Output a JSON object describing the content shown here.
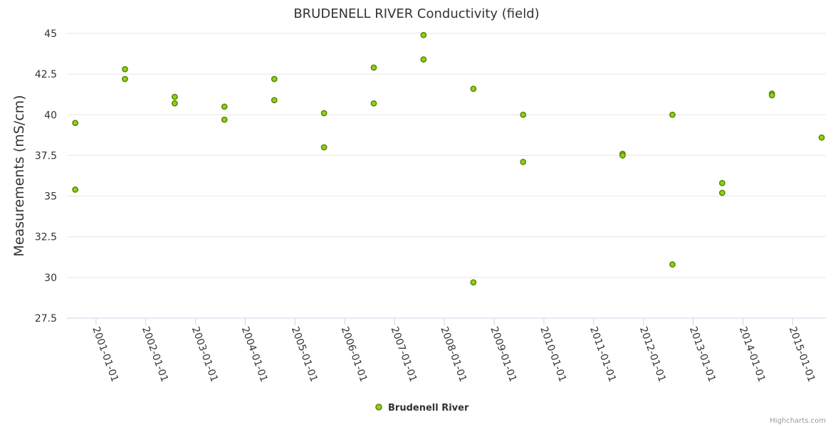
{
  "chart_data": {
    "type": "scatter",
    "title": "BRUDENELL RIVER Conductivity (field)",
    "xlabel": "",
    "ylabel": "Measurements (mS/cm)",
    "ylim": [
      27.5,
      45
    ],
    "xlim": [
      "2000-06-01",
      "2015-09-01"
    ],
    "yticks": [
      "27.5",
      "30",
      "32.5",
      "35",
      "37.5",
      "40",
      "42.5",
      "45"
    ],
    "xticks": [
      "2001-01-01",
      "2002-01-01",
      "2003-01-01",
      "2004-01-01",
      "2005-01-01",
      "2006-01-01",
      "2007-01-01",
      "2008-01-01",
      "2009-01-01",
      "2010-01-01",
      "2011-01-01",
      "2012-01-01",
      "2013-01-01",
      "2014-01-01",
      "2015-01-01"
    ],
    "grid": true,
    "legend_position": "bottom-center",
    "series": [
      {
        "name": "Brudenell River",
        "color": "#90d020",
        "stroke": "#5a8c00",
        "points": [
          {
            "x": "2000-08-01",
            "y": 39.5
          },
          {
            "x": "2000-08-01",
            "y": 35.4
          },
          {
            "x": "2001-08-01",
            "y": 42.8
          },
          {
            "x": "2001-08-01",
            "y": 42.2
          },
          {
            "x": "2002-08-01",
            "y": 41.1
          },
          {
            "x": "2002-08-01",
            "y": 40.7
          },
          {
            "x": "2003-08-01",
            "y": 40.5
          },
          {
            "x": "2003-08-01",
            "y": 39.7
          },
          {
            "x": "2004-08-01",
            "y": 42.2
          },
          {
            "x": "2004-08-01",
            "y": 40.9
          },
          {
            "x": "2005-08-01",
            "y": 40.1
          },
          {
            "x": "2005-08-01",
            "y": 38.0
          },
          {
            "x": "2006-08-01",
            "y": 42.9
          },
          {
            "x": "2006-08-01",
            "y": 40.7
          },
          {
            "x": "2007-08-01",
            "y": 44.9
          },
          {
            "x": "2007-08-01",
            "y": 43.4
          },
          {
            "x": "2008-08-01",
            "y": 41.6
          },
          {
            "x": "2008-08-01",
            "y": 29.7
          },
          {
            "x": "2009-08-01",
            "y": 40.0
          },
          {
            "x": "2009-08-01",
            "y": 37.1
          },
          {
            "x": "2011-08-01",
            "y": 37.6
          },
          {
            "x": "2011-08-01",
            "y": 37.5
          },
          {
            "x": "2012-08-01",
            "y": 40.0
          },
          {
            "x": "2012-08-01",
            "y": 30.8
          },
          {
            "x": "2013-08-01",
            "y": 35.8
          },
          {
            "x": "2013-08-01",
            "y": 35.2
          },
          {
            "x": "2014-08-01",
            "y": 41.3
          },
          {
            "x": "2014-08-01",
            "y": 41.2
          },
          {
            "x": "2015-08-01",
            "y": 38.6
          }
        ]
      }
    ]
  },
  "credits": "Highcharts.com"
}
